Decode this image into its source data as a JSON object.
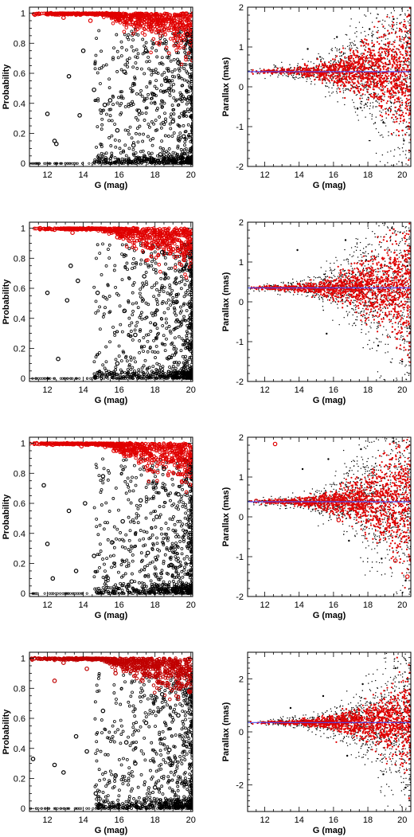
{
  "figure": {
    "colors": {
      "members": "#e00000",
      "nonmembers": "#000000",
      "mean_line": "#4a4af0",
      "frame": "#000000"
    }
  },
  "chart_data": [
    {
      "type": "scatter",
      "panel": "row1-probability",
      "xlabel": "G (mag)",
      "ylabel": "Probability",
      "xlim": [
        11,
        20.1
      ],
      "ylim": [
        -0.02,
        1.04
      ],
      "xticks": [
        12,
        14,
        16,
        18,
        20
      ],
      "yticks": [
        0,
        0.2,
        0.4,
        0.6,
        0.8,
        1
      ],
      "series": [
        {
          "role": "nonmembers",
          "color": "#000000",
          "marker": "open-circle",
          "values": [
            [
              12.0,
              0.33
            ],
            [
              12.4,
              0.15
            ],
            [
              12.5,
              0.13
            ],
            [
              13.2,
              0.58
            ],
            [
              13.8,
              0.32
            ],
            [
              14.0,
              0.75
            ],
            [
              14.6,
              0.49
            ],
            [
              15.2,
              0.39
            ],
            [
              15.5,
              0.42
            ],
            [
              15.9,
              0.22
            ],
            [
              16.3,
              0.61
            ],
            [
              16.8,
              0.12
            ],
            [
              17.1,
              0.35
            ],
            [
              17.5,
              0.75
            ],
            [
              17.9,
              0.46
            ],
            [
              18.3,
              0.06
            ],
            [
              18.6,
              0.55
            ],
            [
              19.0,
              0.28
            ],
            [
              19.3,
              0.67
            ],
            [
              19.6,
              0.18
            ],
            [
              19.8,
              0.86
            ],
            [
              19.9,
              0.44
            ]
          ]
        },
        {
          "role": "members",
          "color": "#e00000",
          "marker": "open-circle",
          "values": [
            [
              11.3,
              0.99
            ],
            [
              12.2,
              1.0
            ],
            [
              12.9,
              0.97
            ],
            [
              13.6,
              0.99
            ],
            [
              14.4,
              0.95
            ],
            [
              15.3,
              1.0
            ],
            [
              16.1,
              0.98
            ],
            [
              16.9,
              0.93
            ],
            [
              17.6,
              0.99
            ],
            [
              18.2,
              0.88
            ],
            [
              18.8,
              0.97
            ],
            [
              19.4,
              0.85
            ],
            [
              19.9,
              0.92
            ]
          ]
        }
      ]
    },
    {
      "type": "scatter",
      "panel": "row1-parallax",
      "xlabel": "G (mag)",
      "ylabel": "Parallax (mas)",
      "xlim": [
        11,
        20.5
      ],
      "ylim": [
        -2,
        2
      ],
      "xticks": [
        12,
        14,
        16,
        18,
        20
      ],
      "yticks": [
        -2,
        -1,
        0,
        1,
        2
      ],
      "mean_parallax": 0.38,
      "series": [
        {
          "role": "nonmembers",
          "color": "#000000",
          "marker": "dot",
          "values": [
            [
              14.5,
              0.95
            ],
            [
              16.2,
              1.25
            ],
            [
              17.4,
              -0.55
            ],
            [
              18.1,
              1.45
            ],
            [
              18.9,
              -0.9
            ],
            [
              19.5,
              1.7
            ],
            [
              20.1,
              -1.35
            ],
            [
              20.3,
              1.1
            ]
          ]
        },
        {
          "role": "members",
          "color": "#e00000",
          "marker": "dot",
          "values": [
            [
              12.0,
              0.39
            ],
            [
              13.5,
              0.38
            ],
            [
              15.0,
              0.4
            ],
            [
              16.5,
              0.35
            ],
            [
              17.8,
              0.5
            ],
            [
              18.7,
              0.2
            ],
            [
              19.4,
              0.8
            ],
            [
              20.0,
              -0.4
            ],
            [
              20.4,
              -1.6
            ]
          ]
        }
      ]
    },
    {
      "type": "scatter",
      "panel": "row2-probability",
      "xlabel": "G (mag)",
      "ylabel": "Probability",
      "xlim": [
        11,
        20.1
      ],
      "ylim": [
        -0.02,
        1.04
      ],
      "xticks": [
        12,
        14,
        16,
        18,
        20
      ],
      "yticks": [
        0,
        0.2,
        0.4,
        0.6,
        0.8,
        1
      ],
      "series": [
        {
          "role": "nonmembers",
          "color": "#000000",
          "marker": "open-circle",
          "values": [
            [
              12.0,
              0.57
            ],
            [
              12.6,
              0.13
            ],
            [
              13.1,
              0.52
            ],
            [
              13.3,
              0.75
            ],
            [
              13.7,
              0.65
            ],
            [
              14.8,
              0.57
            ],
            [
              15.9,
              0.1
            ],
            [
              16.3,
              0.45
            ],
            [
              16.9,
              0.29
            ],
            [
              17.4,
              0.68
            ],
            [
              18.0,
              0.36
            ],
            [
              18.4,
              0.84
            ],
            [
              18.8,
              0.14
            ],
            [
              19.2,
              0.51
            ],
            [
              19.6,
              0.73
            ],
            [
              19.8,
              0.25
            ]
          ]
        },
        {
          "role": "members",
          "color": "#e00000",
          "marker": "open-circle",
          "values": [
            [
              11.6,
              1.0
            ],
            [
              12.4,
              0.99
            ],
            [
              13.4,
              0.97
            ],
            [
              14.3,
              1.0
            ],
            [
              15.1,
              0.98
            ],
            [
              15.9,
              0.94
            ],
            [
              16.8,
              1.0
            ],
            [
              17.5,
              0.9
            ],
            [
              18.3,
              0.97
            ],
            [
              19.0,
              0.86
            ],
            [
              19.7,
              0.95
            ]
          ]
        }
      ]
    },
    {
      "type": "scatter",
      "panel": "row2-parallax",
      "xlabel": "G (mag)",
      "ylabel": "Parallax (mas)",
      "xlim": [
        11,
        20.5
      ],
      "ylim": [
        -2,
        2
      ],
      "xticks": [
        12,
        14,
        16,
        18,
        20
      ],
      "yticks": [
        -2,
        -1,
        0,
        1,
        2
      ],
      "mean_parallax": 0.35,
      "series": [
        {
          "role": "nonmembers",
          "color": "#000000",
          "marker": "dot",
          "values": [
            [
              13.9,
              1.3
            ],
            [
              15.6,
              -0.8
            ],
            [
              16.7,
              1.55
            ],
            [
              17.9,
              1.05
            ],
            [
              18.6,
              -1.1
            ],
            [
              19.4,
              1.85
            ],
            [
              20.0,
              -1.5
            ],
            [
              20.3,
              0.9
            ]
          ]
        },
        {
          "role": "members",
          "color": "#e00000",
          "marker": "dot",
          "values": [
            [
              11.8,
              0.36
            ],
            [
              13.2,
              0.35
            ],
            [
              14.7,
              0.38
            ],
            [
              16.0,
              0.32
            ],
            [
              17.3,
              0.45
            ],
            [
              18.4,
              0.2
            ],
            [
              19.1,
              0.7
            ],
            [
              19.8,
              -0.3
            ],
            [
              20.4,
              -1.4
            ]
          ]
        }
      ]
    },
    {
      "type": "scatter",
      "panel": "row3-probability",
      "xlabel": "G (mag)",
      "ylabel": "Probability",
      "xlim": [
        11,
        20.1
      ],
      "ylim": [
        -0.02,
        1.04
      ],
      "xticks": [
        12,
        14,
        16,
        18,
        20
      ],
      "yticks": [
        0,
        0.2,
        0.4,
        0.6,
        0.8,
        1
      ],
      "series": [
        {
          "role": "nonmembers",
          "color": "#000000",
          "marker": "open-circle",
          "values": [
            [
              11.8,
              0.72
            ],
            [
              12.0,
              0.33
            ],
            [
              12.3,
              0.1
            ],
            [
              13.2,
              0.55
            ],
            [
              13.6,
              0.15
            ],
            [
              14.1,
              0.6
            ],
            [
              14.6,
              0.25
            ],
            [
              15.1,
              0.78
            ],
            [
              15.6,
              0.34
            ],
            [
              16.2,
              0.48
            ],
            [
              16.7,
              0.08
            ],
            [
              17.2,
              0.62
            ],
            [
              17.6,
              0.27
            ],
            [
              18.1,
              0.51
            ],
            [
              18.5,
              0.83
            ],
            [
              18.9,
              0.19
            ],
            [
              19.3,
              0.66
            ],
            [
              19.7,
              0.41
            ]
          ]
        },
        {
          "role": "members",
          "color": "#e00000",
          "marker": "open-circle",
          "values": [
            [
              11.4,
              1.0
            ],
            [
              12.3,
              0.99
            ],
            [
              13.1,
              1.0
            ],
            [
              13.9,
              0.98
            ],
            [
              14.8,
              0.99
            ],
            [
              15.7,
              0.95
            ],
            [
              16.6,
              1.0
            ],
            [
              17.4,
              0.93
            ],
            [
              18.2,
              0.98
            ],
            [
              18.9,
              0.88
            ],
            [
              19.6,
              0.96
            ]
          ]
        }
      ]
    },
    {
      "type": "scatter",
      "panel": "row3-parallax",
      "xlabel": "G (mag)",
      "ylabel": "Parallax (mas)",
      "xlim": [
        11,
        20.5
      ],
      "ylim": [
        -2,
        2
      ],
      "xticks": [
        12,
        14,
        16,
        18,
        20
      ],
      "yticks": [
        -2,
        -1,
        0,
        1,
        2
      ],
      "mean_parallax": 0.38,
      "series": [
        {
          "role": "nonmembers",
          "color": "#000000",
          "marker": "dot",
          "values": [
            [
              14.2,
              1.2
            ],
            [
              15.7,
              1.45
            ],
            [
              16.9,
              -0.6
            ],
            [
              17.6,
              1.7
            ],
            [
              18.8,
              -1.05
            ],
            [
              19.5,
              1.9
            ],
            [
              20.2,
              -1.6
            ]
          ]
        },
        {
          "role": "members",
          "color": "#e00000",
          "marker": "open-circle",
          "values": [
            [
              12.6,
              1.83
            ],
            [
              11.5,
              0.4
            ],
            [
              13.0,
              0.38
            ],
            [
              14.5,
              0.37
            ],
            [
              16.0,
              0.41
            ],
            [
              16.3,
              -0.08
            ],
            [
              17.4,
              0.3
            ],
            [
              18.5,
              0.6
            ],
            [
              19.2,
              -0.2
            ],
            [
              19.6,
              -1.1
            ],
            [
              20.3,
              -1.5
            ]
          ]
        }
      ]
    },
    {
      "type": "scatter",
      "panel": "row4-probability",
      "xlabel": "G (mag)",
      "ylabel": "Probability",
      "xlim": [
        11,
        20.1
      ],
      "ylim": [
        -0.02,
        1.04
      ],
      "xticks": [
        12,
        14,
        16,
        18,
        20
      ],
      "yticks": [
        0,
        0.2,
        0.4,
        0.6,
        0.8,
        1
      ],
      "series": [
        {
          "role": "nonmembers",
          "color": "#000000",
          "marker": "open-circle",
          "values": [
            [
              11.2,
              0.33
            ],
            [
              12.4,
              0.29
            ],
            [
              12.9,
              0.24
            ],
            [
              13.6,
              0.48
            ],
            [
              14.2,
              0.38
            ],
            [
              14.7,
              0.1
            ],
            [
              15.1,
              0.65
            ],
            [
              15.8,
              0.22
            ],
            [
              16.4,
              0.44
            ],
            [
              16.9,
              0.3
            ],
            [
              17.5,
              0.57
            ],
            [
              18.0,
              0.14
            ],
            [
              18.4,
              0.76
            ],
            [
              18.8,
              0.39
            ],
            [
              19.3,
              0.62
            ],
            [
              19.7,
              0.18
            ]
          ]
        },
        {
          "role": "members",
          "color": "#c00000",
          "marker": "open-circle",
          "values": [
            [
              11.3,
              1.0
            ],
            [
              12.4,
              0.85
            ],
            [
              12.9,
              0.97
            ],
            [
              13.6,
              1.0
            ],
            [
              14.2,
              0.93
            ],
            [
              15.0,
              0.99
            ],
            [
              15.8,
              0.9
            ],
            [
              16.6,
              0.97
            ],
            [
              17.3,
              0.85
            ],
            [
              18.0,
              0.95
            ],
            [
              18.7,
              0.82
            ],
            [
              19.4,
              0.92
            ],
            [
              19.9,
              0.78
            ]
          ]
        }
      ]
    },
    {
      "type": "scatter",
      "panel": "row4-parallax",
      "xlabel": "G (mag)",
      "ylabel": "Parallax (mas)",
      "xlim": [
        11,
        20.5
      ],
      "ylim": [
        -3,
        3
      ],
      "xticks": [
        12,
        14,
        16,
        18,
        20
      ],
      "yticks": [
        -2,
        0,
        2
      ],
      "mean_parallax": 0.35,
      "series": [
        {
          "role": "nonmembers",
          "color": "#000000",
          "marker": "dot",
          "values": [
            [
              13.5,
              0.9
            ],
            [
              15.4,
              1.35
            ],
            [
              16.8,
              -0.9
            ],
            [
              17.7,
              1.8
            ],
            [
              18.9,
              -1.6
            ],
            [
              19.6,
              2.4
            ],
            [
              20.2,
              -2.1
            ]
          ]
        },
        {
          "role": "members",
          "color": "#e00000",
          "marker": "dot",
          "values": [
            [
              12.0,
              0.36
            ],
            [
              13.6,
              0.34
            ],
            [
              15.1,
              0.38
            ],
            [
              16.5,
              0.3
            ],
            [
              17.6,
              0.5
            ],
            [
              18.6,
              0.1
            ],
            [
              19.4,
              0.9
            ],
            [
              20.1,
              -0.8
            ],
            [
              20.4,
              -2.5
            ]
          ]
        }
      ]
    }
  ]
}
